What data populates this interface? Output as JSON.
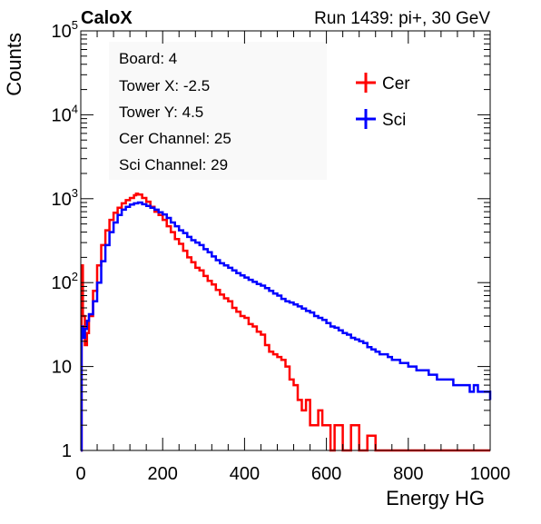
{
  "header": {
    "left": "CaloX",
    "right": "Run 1439: pi+, 30 GeV"
  },
  "info_box": {
    "lines": [
      "Board: 4",
      "Tower X: -2.5",
      "Tower Y: 4.5",
      "Cer Channel: 25",
      "Sci Channel: 29"
    ]
  },
  "chart_data": {
    "type": "line",
    "title": "",
    "xlabel": "Energy HG",
    "ylabel": "Counts",
    "xlim": [
      0,
      1000
    ],
    "ylim": [
      1,
      100000
    ],
    "yscale": "log",
    "grid": false,
    "legend_position": "top-right",
    "xticks": [
      {
        "value": 0,
        "label": "0"
      },
      {
        "value": 200,
        "label": "200"
      },
      {
        "value": 400,
        "label": "400"
      },
      {
        "value": 600,
        "label": "600"
      },
      {
        "value": 800,
        "label": "800"
      },
      {
        "value": 1000,
        "label": "1000"
      }
    ],
    "yticks": [
      {
        "value": 1,
        "base": "1",
        "exp": ""
      },
      {
        "value": 10,
        "base": "10",
        "exp": ""
      },
      {
        "value": 100,
        "base": "10",
        "exp": "2"
      },
      {
        "value": 1000,
        "base": "10",
        "exp": "3"
      },
      {
        "value": 10000,
        "base": "10",
        "exp": "4"
      },
      {
        "value": 100000,
        "base": "10",
        "exp": "5"
      }
    ],
    "series": [
      {
        "name": "Cer",
        "color": "#ff0000",
        "points": [
          [
            0,
            1
          ],
          [
            2,
            160
          ],
          [
            5,
            40
          ],
          [
            10,
            18
          ],
          [
            15,
            25
          ],
          [
            20,
            40
          ],
          [
            30,
            80
          ],
          [
            40,
            160
          ],
          [
            50,
            280
          ],
          [
            60,
            420
          ],
          [
            70,
            560
          ],
          [
            80,
            680
          ],
          [
            90,
            780
          ],
          [
            100,
            880
          ],
          [
            110,
            960
          ],
          [
            120,
            1020
          ],
          [
            130,
            1100
          ],
          [
            135,
            1150
          ],
          [
            140,
            1120
          ],
          [
            150,
            1020
          ],
          [
            160,
            920
          ],
          [
            170,
            800
          ],
          [
            180,
            700
          ],
          [
            190,
            640
          ],
          [
            200,
            560
          ],
          [
            210,
            470
          ],
          [
            220,
            400
          ],
          [
            230,
            330
          ],
          [
            240,
            290
          ],
          [
            250,
            240
          ],
          [
            260,
            200
          ],
          [
            270,
            175
          ],
          [
            280,
            150
          ],
          [
            290,
            140
          ],
          [
            300,
            120
          ],
          [
            310,
            105
          ],
          [
            320,
            95
          ],
          [
            330,
            82
          ],
          [
            340,
            72
          ],
          [
            350,
            65
          ],
          [
            360,
            60
          ],
          [
            370,
            50
          ],
          [
            380,
            45
          ],
          [
            390,
            40
          ],
          [
            400,
            38
          ],
          [
            410,
            32
          ],
          [
            420,
            30
          ],
          [
            430,
            26
          ],
          [
            440,
            24
          ],
          [
            450,
            18
          ],
          [
            460,
            15
          ],
          [
            470,
            14
          ],
          [
            480,
            13
          ],
          [
            490,
            12
          ],
          [
            500,
            10
          ],
          [
            510,
            7
          ],
          [
            520,
            6
          ],
          [
            530,
            4
          ],
          [
            540,
            3
          ],
          [
            550,
            4
          ],
          [
            560,
            2
          ],
          [
            570,
            2
          ],
          [
            580,
            3
          ],
          [
            590,
            2
          ],
          [
            600,
            2
          ],
          [
            610,
            1
          ],
          [
            620,
            2
          ],
          [
            640,
            1
          ],
          [
            660,
            2
          ],
          [
            680,
            1
          ],
          [
            700,
            1.5
          ],
          [
            720,
            1
          ],
          [
            760,
            1
          ],
          [
            800,
            1
          ],
          [
            850,
            1
          ],
          [
            900,
            1
          ],
          [
            1000,
            1
          ]
        ]
      },
      {
        "name": "Sci",
        "color": "#0000ff",
        "points": [
          [
            0,
            1
          ],
          [
            2,
            30
          ],
          [
            5,
            22
          ],
          [
            10,
            28
          ],
          [
            15,
            35
          ],
          [
            20,
            42
          ],
          [
            30,
            60
          ],
          [
            40,
            100
          ],
          [
            50,
            180
          ],
          [
            60,
            280
          ],
          [
            70,
            400
          ],
          [
            80,
            520
          ],
          [
            90,
            640
          ],
          [
            100,
            740
          ],
          [
            110,
            800
          ],
          [
            120,
            850
          ],
          [
            130,
            880
          ],
          [
            140,
            900
          ],
          [
            150,
            860
          ],
          [
            160,
            820
          ],
          [
            170,
            780
          ],
          [
            180,
            740
          ],
          [
            190,
            690
          ],
          [
            200,
            650
          ],
          [
            210,
            590
          ],
          [
            220,
            520
          ],
          [
            230,
            470
          ],
          [
            240,
            420
          ],
          [
            250,
            390
          ],
          [
            260,
            350
          ],
          [
            270,
            320
          ],
          [
            280,
            300
          ],
          [
            290,
            280
          ],
          [
            300,
            250
          ],
          [
            310,
            230
          ],
          [
            320,
            205
          ],
          [
            330,
            185
          ],
          [
            340,
            170
          ],
          [
            350,
            160
          ],
          [
            360,
            150
          ],
          [
            370,
            140
          ],
          [
            380,
            130
          ],
          [
            390,
            122
          ],
          [
            400,
            115
          ],
          [
            410,
            108
          ],
          [
            420,
            102
          ],
          [
            430,
            96
          ],
          [
            440,
            92
          ],
          [
            450,
            86
          ],
          [
            460,
            80
          ],
          [
            470,
            74
          ],
          [
            480,
            70
          ],
          [
            490,
            64
          ],
          [
            500,
            60
          ],
          [
            510,
            58
          ],
          [
            520,
            55
          ],
          [
            530,
            52
          ],
          [
            540,
            49
          ],
          [
            550,
            46
          ],
          [
            560,
            44
          ],
          [
            570,
            40
          ],
          [
            580,
            38
          ],
          [
            590,
            36
          ],
          [
            600,
            33
          ],
          [
            610,
            30
          ],
          [
            620,
            29
          ],
          [
            630,
            27
          ],
          [
            640,
            25
          ],
          [
            650,
            24
          ],
          [
            660,
            22
          ],
          [
            670,
            21
          ],
          [
            680,
            20
          ],
          [
            690,
            19
          ],
          [
            700,
            17
          ],
          [
            710,
            16
          ],
          [
            720,
            15
          ],
          [
            730,
            14
          ],
          [
            740,
            14
          ],
          [
            750,
            13
          ],
          [
            760,
            12
          ],
          [
            770,
            12
          ],
          [
            780,
            11
          ],
          [
            790,
            11
          ],
          [
            800,
            10
          ],
          [
            810,
            10
          ],
          [
            820,
            9
          ],
          [
            830,
            9
          ],
          [
            840,
            9
          ],
          [
            850,
            8
          ],
          [
            860,
            8
          ],
          [
            870,
            7
          ],
          [
            880,
            7
          ],
          [
            890,
            7
          ],
          [
            900,
            7
          ],
          [
            910,
            6
          ],
          [
            920,
            6
          ],
          [
            930,
            6
          ],
          [
            940,
            6
          ],
          [
            950,
            5
          ],
          [
            960,
            6
          ],
          [
            970,
            5
          ],
          [
            980,
            5
          ],
          [
            990,
            5
          ],
          [
            1000,
            4
          ]
        ]
      }
    ]
  }
}
